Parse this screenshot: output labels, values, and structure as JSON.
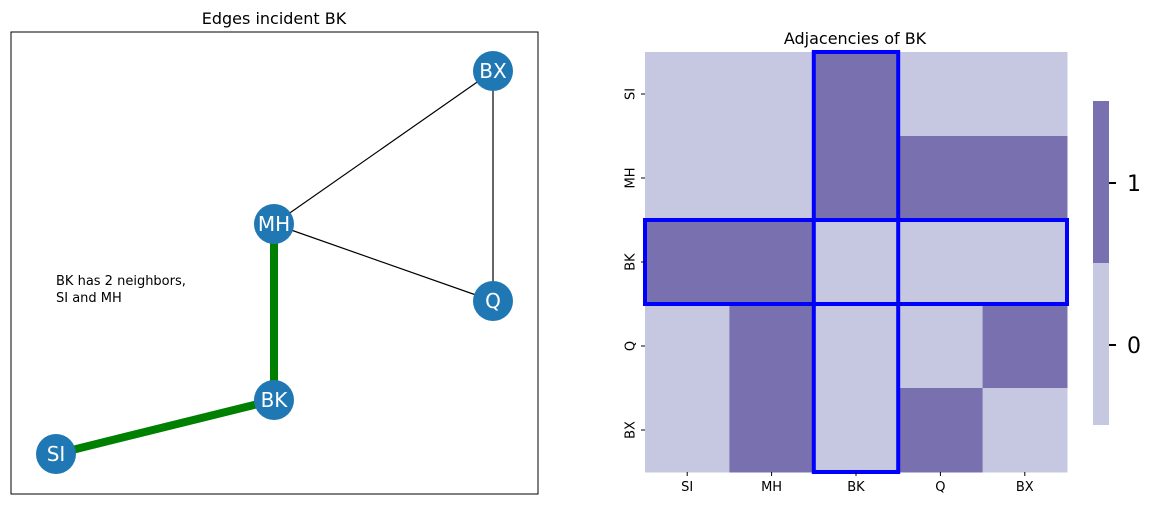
{
  "colors": {
    "node": "#1f77b4",
    "edge": "#000000",
    "highlight_edge": "#008000",
    "heat_low": "#c6c8e2",
    "heat_high": "#7970b0",
    "highlight_box": "#0000ff"
  },
  "chart_data": [
    {
      "type": "network",
      "title": "Edges incident BK",
      "nodes": [
        "SI",
        "MH",
        "BK",
        "Q",
        "BX"
      ],
      "edges": [
        [
          "SI",
          "BK"
        ],
        [
          "MH",
          "BK"
        ],
        [
          "MH",
          "BX"
        ],
        [
          "MH",
          "Q"
        ],
        [
          "Q",
          "BX"
        ]
      ],
      "highlighted_edges": [
        [
          "SI",
          "BK"
        ],
        [
          "MH",
          "BK"
        ]
      ],
      "annotation": "BK has 2 neighbors,\n SI and MH"
    },
    {
      "type": "heatmap",
      "title": "Adjacencies of BK",
      "row_labels": [
        "SI",
        "MH",
        "BK",
        "Q",
        "BX"
      ],
      "col_labels": [
        "SI",
        "MH",
        "BK",
        "Q",
        "BX"
      ],
      "matrix": [
        [
          0,
          0,
          1,
          0,
          0
        ],
        [
          0,
          0,
          1,
          1,
          1
        ],
        [
          1,
          1,
          0,
          0,
          0
        ],
        [
          0,
          1,
          0,
          0,
          1
        ],
        [
          0,
          1,
          0,
          1,
          0
        ]
      ],
      "highlight": {
        "row": "BK",
        "col": "BK"
      },
      "colorbar_ticks": [
        "0",
        "1"
      ]
    }
  ]
}
